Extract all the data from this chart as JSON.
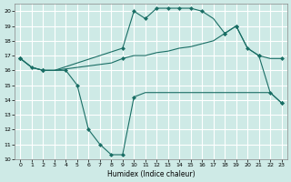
{
  "xlabel": "Humidex (Indice chaleur)",
  "bg_color": "#ceeae6",
  "grid_color": "#ffffff",
  "line_color": "#1a6e65",
  "xlim": [
    -0.5,
    23.5
  ],
  "ylim": [
    10,
    20.5
  ],
  "yticks": [
    10,
    11,
    12,
    13,
    14,
    15,
    16,
    17,
    18,
    19,
    20
  ],
  "xticks": [
    0,
    1,
    2,
    3,
    4,
    5,
    6,
    7,
    8,
    9,
    10,
    11,
    12,
    13,
    14,
    15,
    16,
    17,
    18,
    19,
    20,
    21,
    22,
    23
  ],
  "line1_x": [
    0,
    1,
    2,
    4,
    5,
    6,
    7,
    8,
    9,
    10,
    11,
    12,
    13,
    14,
    15,
    16,
    17,
    18,
    19,
    20,
    21,
    22,
    23
  ],
  "line1_y": [
    16.8,
    16.2,
    16.0,
    16.0,
    15.0,
    12.0,
    11.0,
    10.3,
    10.3,
    14.2,
    14.5,
    14.5,
    14.5,
    14.5,
    14.5,
    14.5,
    14.5,
    14.5,
    14.5,
    14.5,
    14.5,
    14.5,
    13.8
  ],
  "line1_mx": [
    0,
    1,
    2,
    4,
    5,
    6,
    7,
    8,
    9,
    10,
    23
  ],
  "line1_my": [
    16.8,
    16.2,
    16.0,
    16.0,
    15.0,
    12.0,
    11.0,
    10.3,
    10.3,
    14.2,
    13.8
  ],
  "line2_x": [
    0,
    1,
    2,
    3,
    4,
    5,
    6,
    7,
    8,
    9,
    10,
    11,
    12,
    13,
    14,
    15,
    16,
    17,
    18,
    19,
    20,
    21,
    22,
    23
  ],
  "line2_y": [
    16.8,
    16.2,
    16.0,
    16.0,
    16.1,
    16.2,
    16.3,
    16.4,
    16.5,
    16.8,
    17.0,
    17.0,
    17.2,
    17.3,
    17.5,
    17.6,
    17.8,
    18.0,
    18.5,
    19.0,
    17.5,
    17.0,
    16.8,
    16.8
  ],
  "line2_mx": [
    0,
    2,
    9,
    18,
    19,
    20,
    21,
    23
  ],
  "line2_my": [
    16.8,
    16.0,
    16.8,
    18.5,
    19.0,
    17.5,
    17.0,
    16.8
  ],
  "line3_x": [
    0,
    1,
    2,
    3,
    9,
    10,
    11,
    12,
    13,
    14,
    15,
    16,
    17,
    18,
    19,
    20,
    21,
    22,
    23
  ],
  "line3_y": [
    16.8,
    16.2,
    16.0,
    16.0,
    17.5,
    20.0,
    19.5,
    20.2,
    20.2,
    20.2,
    20.2,
    20.0,
    19.5,
    18.5,
    19.0,
    17.5,
    17.0,
    14.5,
    13.8
  ],
  "line3_mx": [
    0,
    2,
    9,
    10,
    11,
    12,
    13,
    14,
    15,
    16,
    18,
    19,
    21,
    22,
    23
  ],
  "line3_my": [
    16.8,
    16.0,
    17.5,
    20.0,
    19.5,
    20.2,
    20.2,
    20.2,
    20.2,
    20.0,
    18.5,
    19.0,
    17.0,
    14.5,
    13.8
  ]
}
